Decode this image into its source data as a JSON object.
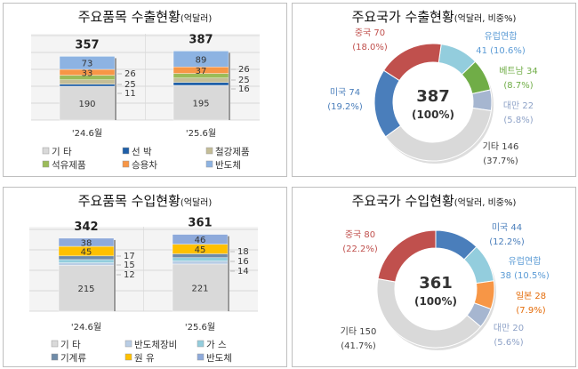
{
  "chart_data": [
    {
      "type": "bar",
      "stacked": true,
      "title": "주요품목 수출현황",
      "unit": "(억달러)",
      "categories": [
        "'24.6월",
        "'25.6월"
      ],
      "totals": [
        357,
        387
      ],
      "series": [
        {
          "name": "기 타",
          "values": [
            190,
            195
          ],
          "color": "#d9d9d9"
        },
        {
          "name": "선 박",
          "values": [
            11,
            16
          ],
          "color": "#1f5fa8"
        },
        {
          "name": "철강제품",
          "values": [
            25,
            25
          ],
          "color": "#c4bd97"
        },
        {
          "name": "석유제품",
          "values": [
            26,
            26
          ],
          "color": "#9bbb59"
        },
        {
          "name": "승용차",
          "values": [
            33,
            37
          ],
          "color": "#f79646"
        },
        {
          "name": "반도체",
          "values": [
            73,
            89
          ],
          "color": "#8db3e2"
        }
      ],
      "grid": true,
      "legend": "bottom"
    },
    {
      "type": "pie",
      "donut": true,
      "title": "주요국가 수출현황",
      "unit": "(억달러, 비중%)",
      "center_value": "387",
      "center_pct": "(100%)",
      "slices": [
        {
          "name": "유럽연합",
          "value": 41,
          "pct": "(10.6%)",
          "color": "#93cddd",
          "text_color": "#5b9bd5"
        },
        {
          "name": "베트남",
          "value": 34,
          "pct": "(8.7%)",
          "color": "#70ad47",
          "text_color": "#70ad47"
        },
        {
          "name": "대만",
          "value": 22,
          "pct": "(5.8%)",
          "color": "#a6b6d0",
          "text_color": "#8ea2c7"
        },
        {
          "name": "기타",
          "value": 146,
          "pct": "(37.7%)",
          "color": "#d9d9d9",
          "text_color": "#404040"
        },
        {
          "name": "미국",
          "value": 74,
          "pct": "(19.2%)",
          "color": "#4a7ebb",
          "text_color": "#4a7ebb"
        },
        {
          "name": "중국",
          "value": 70,
          "pct": "(18.0%)",
          "color": "#c0504d",
          "text_color": "#c0504d"
        }
      ]
    },
    {
      "type": "bar",
      "stacked": true,
      "title": "주요품목 수입현황",
      "unit": "(억달러)",
      "categories": [
        "'24.6월",
        "'25.6월"
      ],
      "totals": [
        342,
        361
      ],
      "series": [
        {
          "name": "기 타",
          "values": [
            215,
            221
          ],
          "color": "#d9d9d9"
        },
        {
          "name": "반도체장비",
          "values": [
            12,
            14
          ],
          "color": "#b9cde5"
        },
        {
          "name": "가 스",
          "values": [
            15,
            16
          ],
          "color": "#93cddd"
        },
        {
          "name": "기계류",
          "values": [
            17,
            18
          ],
          "color": "#6f8ba8"
        },
        {
          "name": "원 유",
          "values": [
            45,
            45
          ],
          "color": "#ffc000"
        },
        {
          "name": "반도체",
          "values": [
            38,
            46
          ],
          "color": "#8eaadb"
        }
      ],
      "grid": true,
      "legend": "bottom"
    },
    {
      "type": "pie",
      "donut": true,
      "title": "주요국가 수입현황",
      "unit": "(억달러, 비중%)",
      "center_value": "361",
      "center_pct": "(100%)",
      "slices": [
        {
          "name": "미국",
          "value": 44,
          "pct": "(12.2%)",
          "color": "#4a7ebb",
          "text_color": "#4a7ebb"
        },
        {
          "name": "유럽연합",
          "value": 38,
          "pct": "(10.5%)",
          "color": "#93cddd",
          "text_color": "#5b9bd5"
        },
        {
          "name": "일본",
          "value": 28,
          "pct": "(7.9%)",
          "color": "#f79646",
          "text_color": "#e46c0a"
        },
        {
          "name": "대만",
          "value": 20,
          "pct": "(5.6%)",
          "color": "#a6b6d0",
          "text_color": "#8ea2c7"
        },
        {
          "name": "기타",
          "value": 150,
          "pct": "(41.7%)",
          "color": "#d9d9d9",
          "text_color": "#404040"
        },
        {
          "name": "중국",
          "value": 80,
          "pct": "(22.2%)",
          "color": "#c0504d",
          "text_color": "#c0504d"
        }
      ]
    }
  ]
}
